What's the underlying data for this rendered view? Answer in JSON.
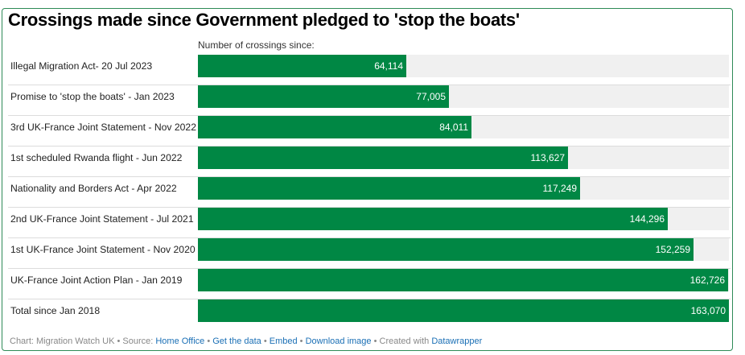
{
  "chart_data": {
    "type": "bar",
    "orientation": "horizontal",
    "title": "Crossings made since Government pledged to 'stop the boats'",
    "subtitle": "Number of crossings since:",
    "categories": [
      "Illegal Migration Act- 20 Jul 2023",
      "Promise to 'stop the boats' - Jan 2023",
      "3rd UK-France Joint Statement - Nov 2022",
      "1st scheduled Rwanda flight - Jun 2022",
      "Nationality and Borders Act - Apr 2022",
      "2nd UK-France Joint Statement - Jul 2021",
      "1st UK-France Joint Statement - Nov 2020",
      "UK-France Joint Action Plan - Jan 2019",
      "Total since Jan 2018"
    ],
    "values": [
      64114,
      77005,
      84011,
      113627,
      117249,
      144296,
      152259,
      162726,
      163070
    ],
    "value_labels": [
      "64,114",
      "77,005",
      "84,011",
      "113,627",
      "117,249",
      "144,296",
      "152,259",
      "162,726",
      "163,070"
    ],
    "xlim": [
      0,
      163070
    ],
    "grid": false,
    "bar_color": "#008744",
    "track_color": "#f0f0f0"
  },
  "footer": {
    "prefix": "Chart: Migration Watch UK • Source: ",
    "source_link": "Home Office",
    "get_data": "Get the data",
    "embed": "Embed",
    "download": "Download image",
    "created_with": "Created with ",
    "tool": "Datawrapper",
    "sep": " • "
  },
  "colors": {
    "frame": "#2e8b57",
    "link": "#1a6fb5"
  }
}
